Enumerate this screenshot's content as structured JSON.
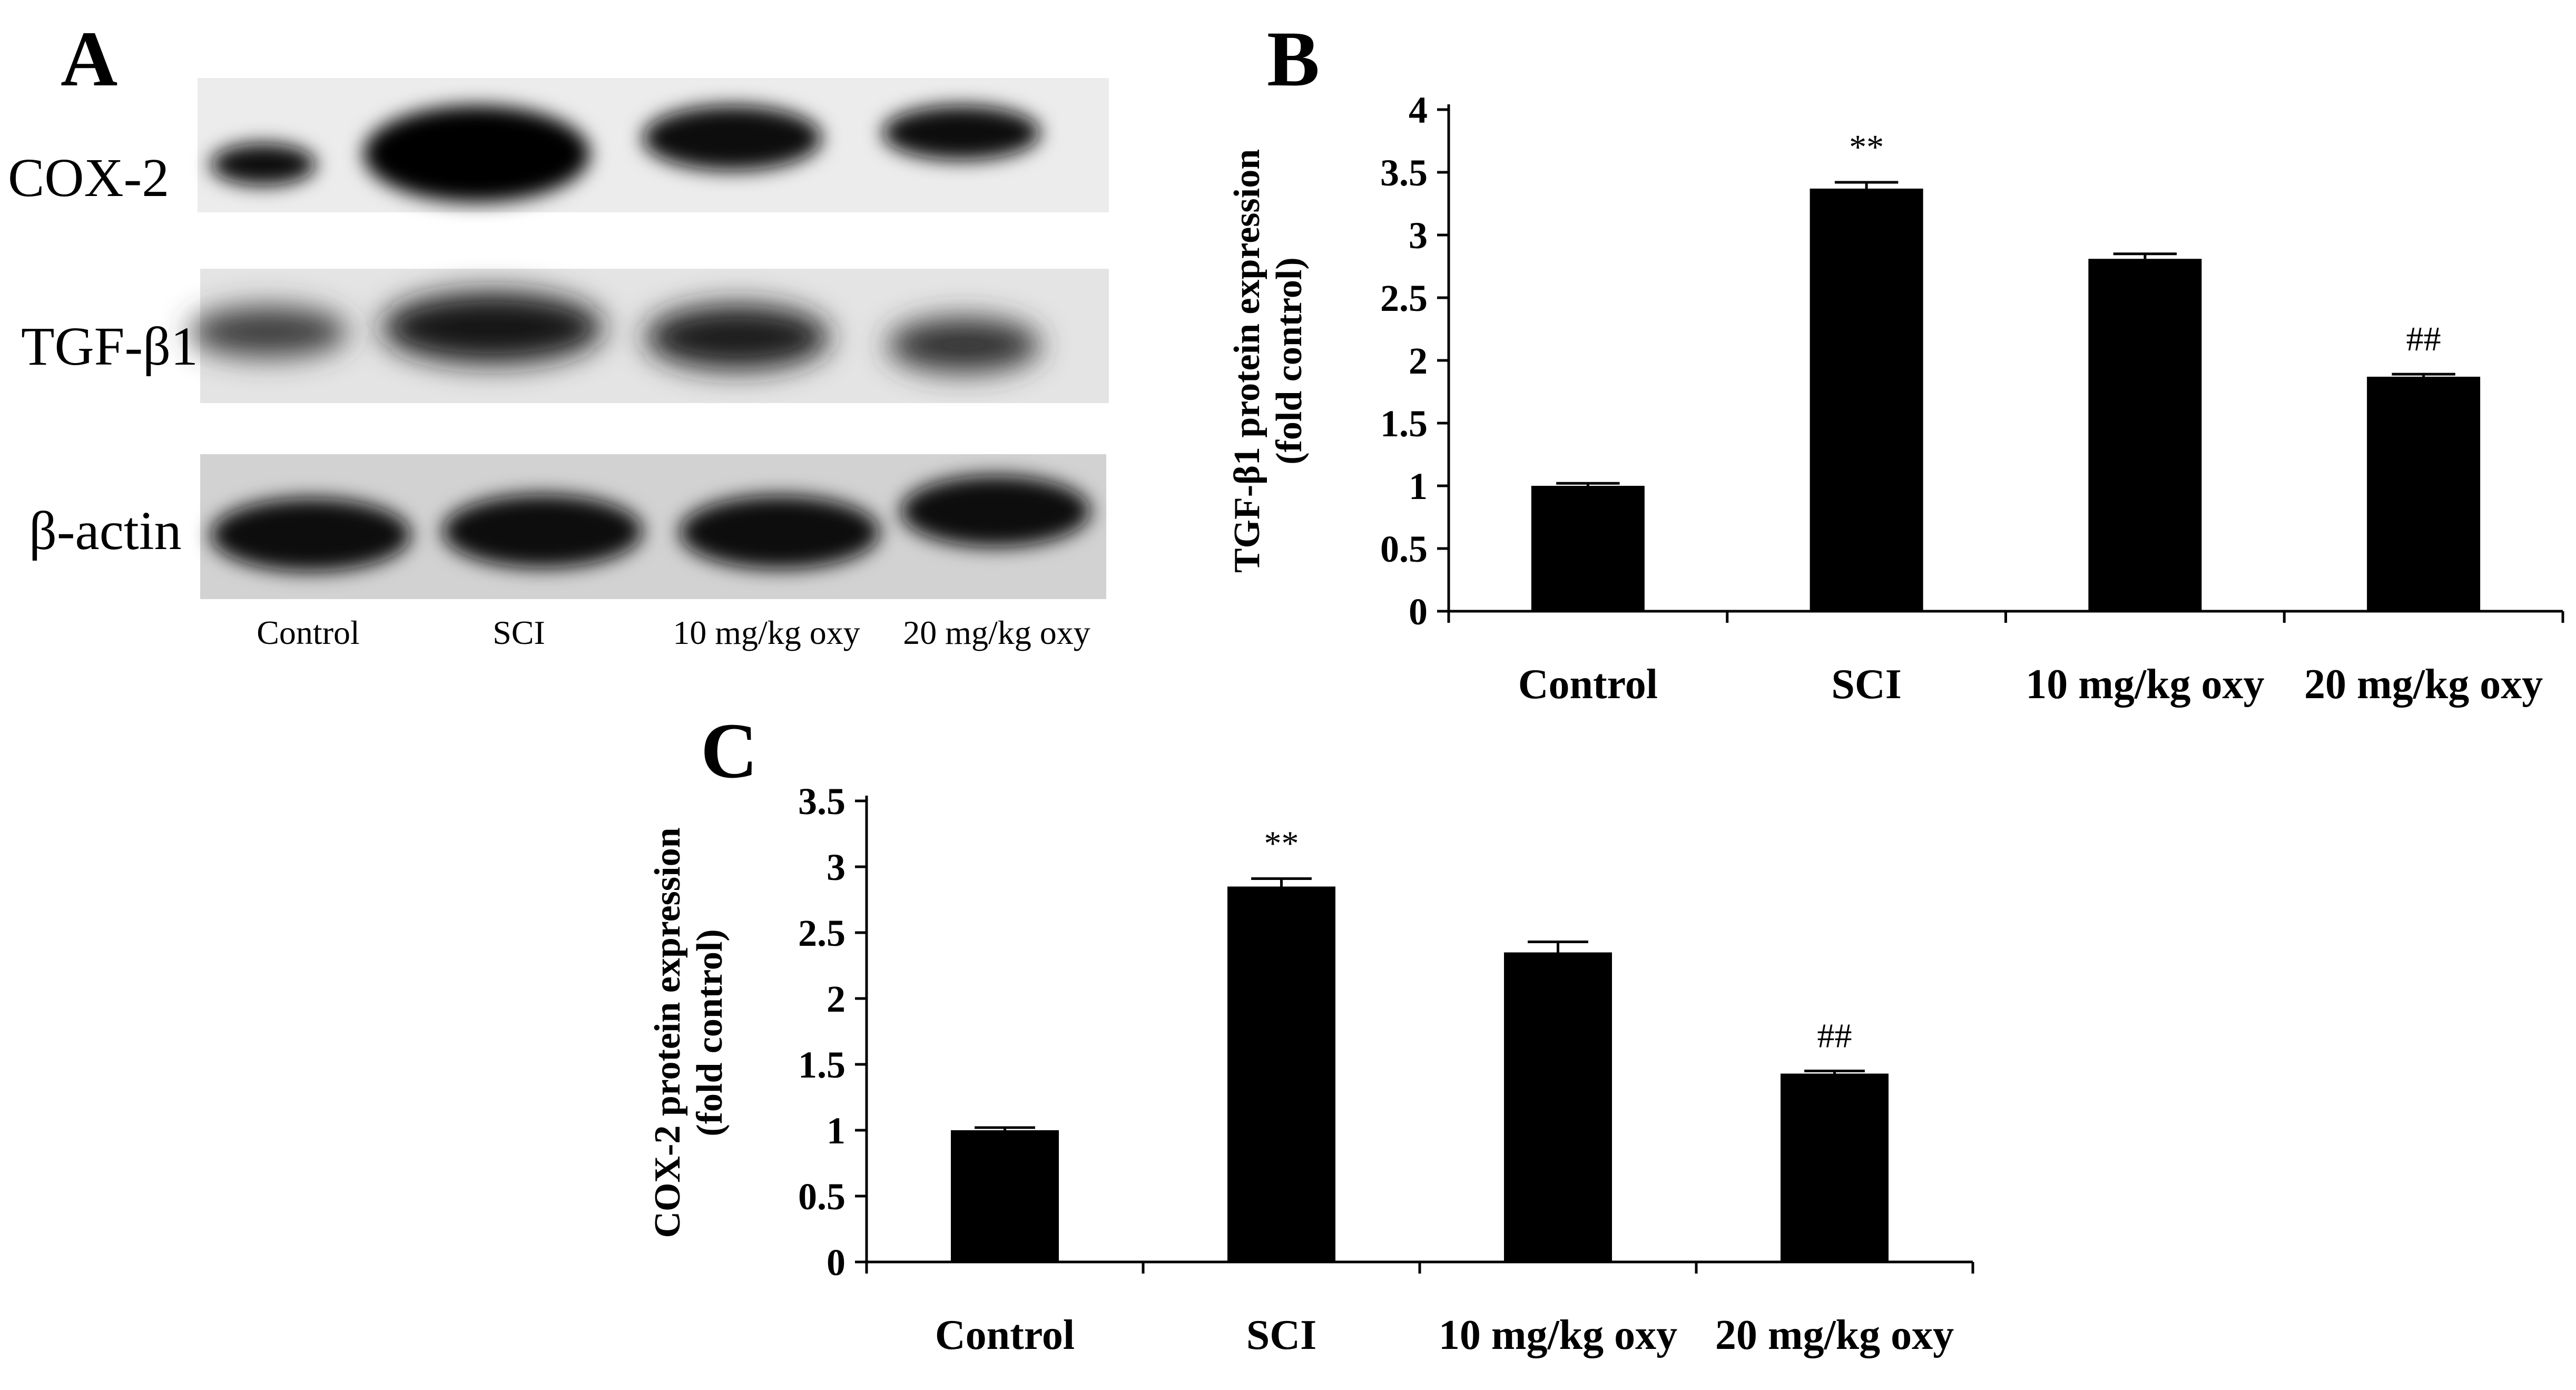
{
  "panels": {
    "a": {
      "letter": "A",
      "rows": [
        "COX-2",
        "TGF-β1",
        "β-actin"
      ],
      "lanes": [
        "Control",
        "SCI",
        "10 mg/kg oxy",
        "20 mg/kg oxy"
      ]
    },
    "b": {
      "letter": "B"
    },
    "c": {
      "letter": "C"
    }
  },
  "chart_data": [
    {
      "type": "bar",
      "panel": "B",
      "categories": [
        "Control",
        "SCI",
        "10 mg/kg oxy",
        "20 mg/kg oxy"
      ],
      "values": [
        1.0,
        3.37,
        2.81,
        1.87
      ],
      "errors": [
        0.02,
        0.05,
        0.04,
        0.02
      ],
      "annotations": [
        "",
        "**",
        "",
        "##"
      ],
      "ylabel_line1": "TGF-β1 protein expression",
      "ylabel_line2": "(fold control)",
      "ylim": [
        0,
        4
      ],
      "yticks": [
        "0",
        "0.5",
        "1",
        "1.5",
        "2",
        "2.5",
        "3",
        "3.5",
        "4"
      ],
      "grid": false,
      "bar_color": "#000000"
    },
    {
      "type": "bar",
      "panel": "C",
      "categories": [
        "Control",
        "SCI",
        "10 mg/kg oxy",
        "20 mg/kg oxy"
      ],
      "values": [
        1.0,
        2.85,
        2.35,
        1.43
      ],
      "errors": [
        0.02,
        0.06,
        0.08,
        0.02
      ],
      "annotations": [
        "",
        "**",
        "",
        "##"
      ],
      "ylabel_line1": "COX-2 protein expression",
      "ylabel_line2": "(fold control)",
      "ylim": [
        0,
        3.5
      ],
      "yticks": [
        "0",
        "0.5",
        "1",
        "1.5",
        "2",
        "2.5",
        "3",
        "3.5"
      ],
      "grid": false,
      "bar_color": "#000000"
    }
  ]
}
